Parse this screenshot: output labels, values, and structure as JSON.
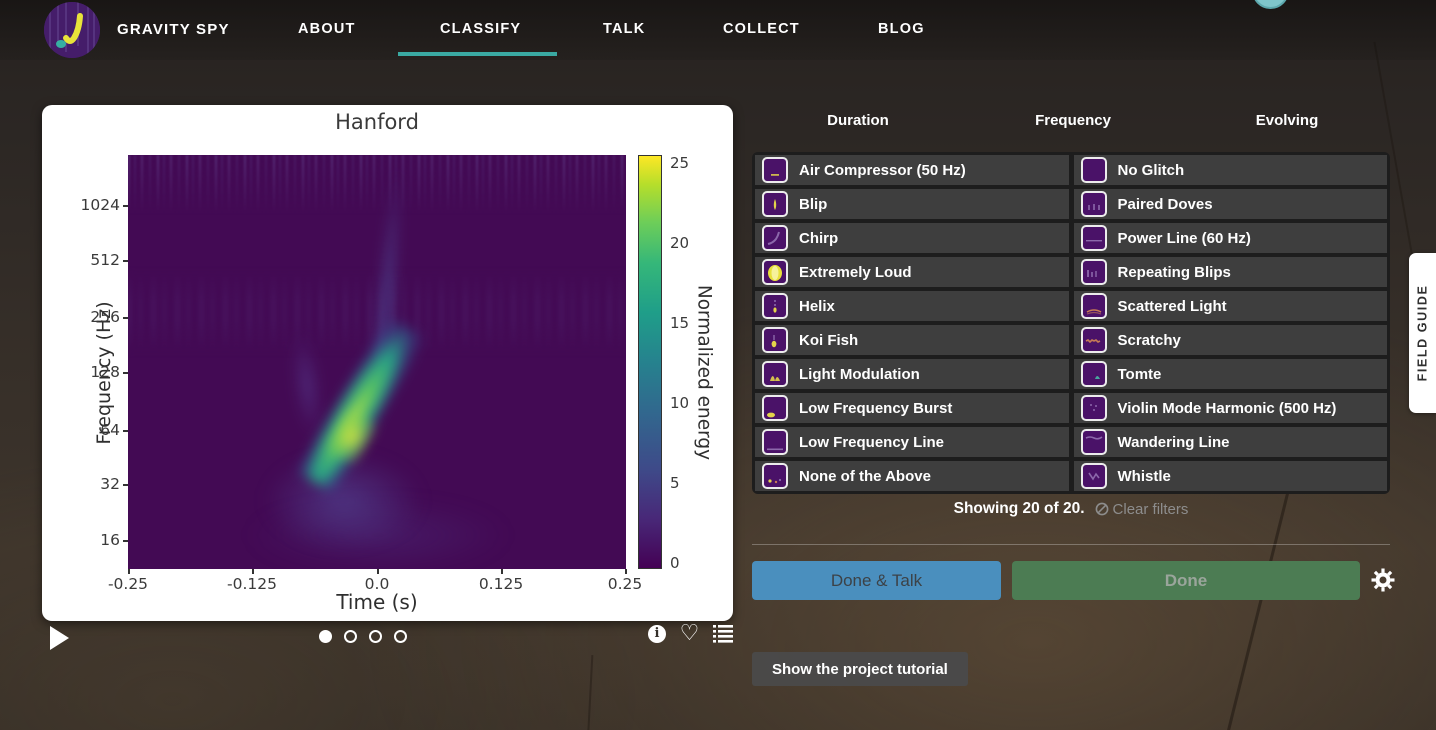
{
  "nav": {
    "brand": "GRAVITY SPY",
    "items": [
      {
        "label": "ABOUT",
        "active": false
      },
      {
        "label": "CLASSIFY",
        "active": true
      },
      {
        "label": "TALK",
        "active": false
      },
      {
        "label": "COLLECT",
        "active": false
      },
      {
        "label": "BLOG",
        "active": false
      }
    ],
    "accent_color": "#3aa9a2"
  },
  "subject_viewer": {
    "title": "Hanford",
    "xlabel": "Time (s)",
    "ylabel": "Frequency (Hz)",
    "x_ticks": [
      "-0.25",
      "-0.125",
      "0.0",
      "0.125",
      "0.25"
    ],
    "y_ticks": [
      "1024",
      "512",
      "256",
      "128",
      "64",
      "32",
      "16"
    ],
    "colorbar": {
      "label": "Normalized energy",
      "ticks": [
        "0",
        "5",
        "10",
        "15",
        "20",
        "25"
      ],
      "min": 0,
      "max": 25,
      "colormap": "viridis"
    },
    "page_count": 4,
    "active_page": 0,
    "content_note": "spectrogram with bright chirp-like glitch rising left-to-right near t=0, core around 32-128 Hz"
  },
  "filters": {
    "duration": "Duration",
    "frequency": "Frequency",
    "evolving": "Evolving"
  },
  "choices": {
    "column1": [
      {
        "label": "Air Compressor (50 Hz)",
        "icon": "air-compressor-thumbnail"
      },
      {
        "label": "Blip",
        "icon": "blip-thumbnail"
      },
      {
        "label": "Chirp",
        "icon": "chirp-thumbnail"
      },
      {
        "label": "Extremely Loud",
        "icon": "extremely-loud-thumbnail"
      },
      {
        "label": "Helix",
        "icon": "helix-thumbnail"
      },
      {
        "label": "Koi Fish",
        "icon": "koi-fish-thumbnail"
      },
      {
        "label": "Light Modulation",
        "icon": "light-modulation-thumbnail"
      },
      {
        "label": "Low Frequency Burst",
        "icon": "low-frequency-burst-thumbnail"
      },
      {
        "label": "Low Frequency Line",
        "icon": "low-frequency-line-thumbnail"
      },
      {
        "label": "None of the Above",
        "icon": "none-of-the-above-thumbnail"
      }
    ],
    "column2": [
      {
        "label": "No Glitch",
        "icon": "no-glitch-thumbnail"
      },
      {
        "label": "Paired Doves",
        "icon": "paired-doves-thumbnail"
      },
      {
        "label": "Power Line (60 Hz)",
        "icon": "power-line-thumbnail"
      },
      {
        "label": "Repeating Blips",
        "icon": "repeating-blips-thumbnail"
      },
      {
        "label": "Scattered Light",
        "icon": "scattered-light-thumbnail"
      },
      {
        "label": "Scratchy",
        "icon": "scratchy-thumbnail"
      },
      {
        "label": "Tomte",
        "icon": "tomte-thumbnail"
      },
      {
        "label": "Violin Mode Harmonic (500 Hz)",
        "icon": "violin-mode-thumbnail"
      },
      {
        "label": "Wandering Line",
        "icon": "wandering-line-thumbnail"
      },
      {
        "label": "Whistle",
        "icon": "whistle-thumbnail"
      }
    ]
  },
  "status": {
    "showing": "Showing 20 of 20.",
    "clear_filters": "Clear filters"
  },
  "actions": {
    "done_talk": "Done & Talk",
    "done": "Done",
    "tutorial": "Show the project tutorial",
    "done_talk_color": "#4a8fbe",
    "done_color": "#4c7c53"
  },
  "field_guide": {
    "label": "FIELD GUIDE"
  }
}
